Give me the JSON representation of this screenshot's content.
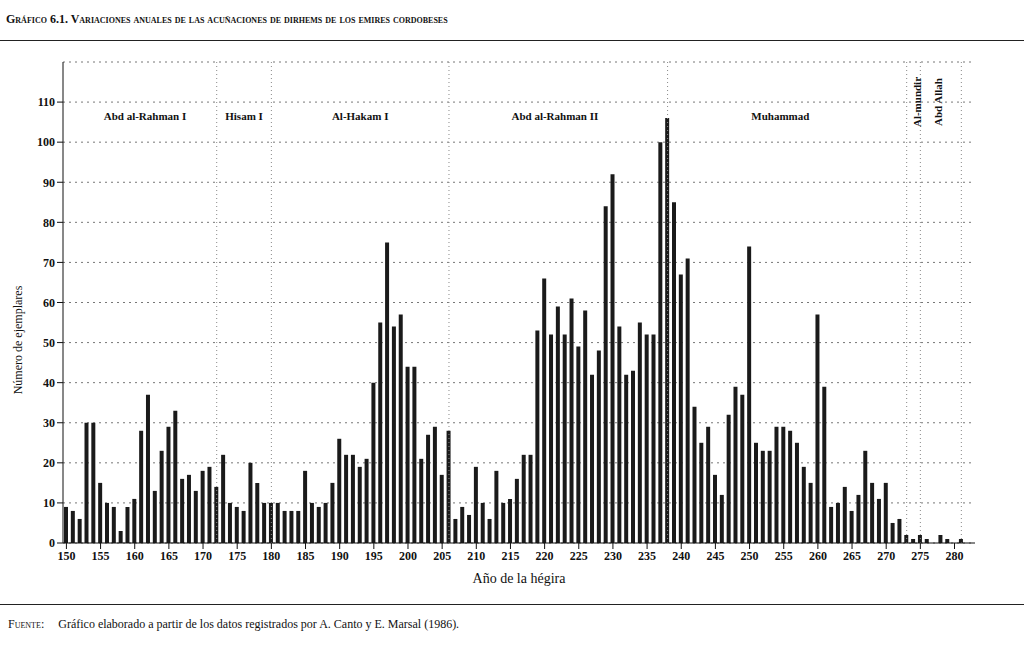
{
  "chart_data": {
    "type": "bar",
    "title": "Gráfico 6.1. Variaciones anuales de las acuñaciones de dirhems de los emires cordobeses",
    "x_label": "Año de la hégira",
    "y_label": "Número de ejemplares",
    "source_label": "Fuente:",
    "source": "Gráfico elaborado a partir de los datos registrados por A. Canto y E. Marsal (1986).",
    "x": [
      150,
      151,
      152,
      153,
      154,
      155,
      156,
      157,
      158,
      159,
      160,
      161,
      162,
      163,
      164,
      165,
      166,
      167,
      168,
      169,
      170,
      171,
      172,
      173,
      174,
      175,
      176,
      177,
      178,
      179,
      180,
      181,
      182,
      183,
      184,
      185,
      186,
      187,
      188,
      189,
      190,
      191,
      192,
      193,
      194,
      195,
      196,
      197,
      198,
      199,
      200,
      201,
      202,
      203,
      204,
      205,
      206,
      207,
      208,
      209,
      210,
      211,
      212,
      213,
      214,
      215,
      216,
      217,
      218,
      219,
      220,
      221,
      222,
      223,
      224,
      225,
      226,
      227,
      228,
      229,
      230,
      231,
      232,
      233,
      234,
      235,
      236,
      237,
      238,
      239,
      240,
      241,
      242,
      243,
      244,
      245,
      246,
      247,
      248,
      249,
      250,
      251,
      252,
      253,
      254,
      255,
      256,
      257,
      258,
      259,
      260,
      261,
      262,
      263,
      264,
      265,
      266,
      267,
      268,
      269,
      270,
      271,
      272,
      273,
      274,
      275,
      276,
      277,
      278,
      279,
      280,
      281
    ],
    "values": [
      9,
      8,
      6,
      30,
      30,
      15,
      10,
      9,
      3,
      9,
      11,
      28,
      37,
      13,
      23,
      29,
      33,
      16,
      17,
      13,
      18,
      19,
      14,
      22,
      10,
      9,
      8,
      20,
      15,
      10,
      10,
      10,
      8,
      8,
      8,
      18,
      10,
      9,
      10,
      15,
      26,
      22,
      22,
      19,
      21,
      40,
      55,
      75,
      54,
      57,
      44,
      44,
      21,
      27,
      29,
      17,
      28,
      6,
      9,
      7,
      19,
      10,
      6,
      18,
      10,
      11,
      16,
      22,
      22,
      53,
      66,
      52,
      59,
      52,
      61,
      49,
      58,
      42,
      48,
      84,
      92,
      54,
      42,
      43,
      55,
      52,
      52,
      100,
      106,
      85,
      67,
      71,
      34,
      25,
      29,
      17,
      12,
      32,
      39,
      37,
      74,
      25,
      23,
      23,
      29,
      29,
      28,
      25,
      19,
      15,
      57,
      39,
      9,
      10,
      14,
      8,
      12,
      23,
      15,
      11,
      15,
      5,
      6,
      2,
      1,
      2,
      1,
      0,
      2,
      1,
      0,
      1
    ],
    "color": "#1a1a1a",
    "xlim": [
      149.5,
      283
    ],
    "xticks": [
      150,
      155,
      160,
      165,
      170,
      175,
      180,
      185,
      190,
      195,
      200,
      205,
      210,
      215,
      220,
      225,
      230,
      235,
      240,
      245,
      250,
      255,
      260,
      265,
      270,
      275,
      280
    ],
    "ylim": [
      0,
      120
    ],
    "yticks": [
      0,
      10,
      20,
      30,
      40,
      50,
      60,
      70,
      80,
      90,
      100,
      110
    ],
    "grid": true,
    "reference_lines": [
      172,
      180,
      206,
      238,
      273,
      275,
      281
    ],
    "annotations": [
      {
        "text": "Abd al-Rahman I",
        "x": 161.5
      },
      {
        "text": "Hisam I",
        "x": 176
      },
      {
        "text": "Al-Hakam I",
        "x": 193
      },
      {
        "text": "Abd al-Rahman II",
        "x": 221.5
      },
      {
        "text": "Muhammad",
        "x": 254.5
      },
      {
        "text": "Al-mundir",
        "x": 274
      },
      {
        "text": "Abd Allah",
        "x": 277
      }
    ]
  }
}
